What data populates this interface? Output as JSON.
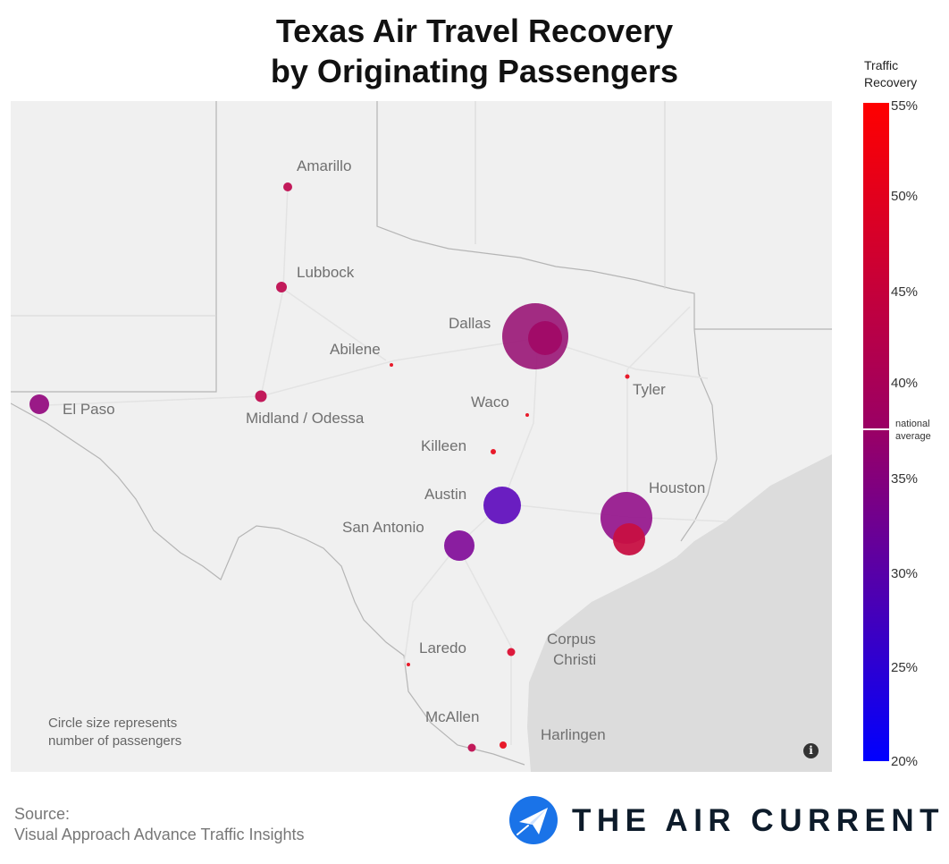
{
  "title": {
    "line1": "Texas Air Travel Recovery",
    "line2": "by Originating Passengers"
  },
  "legend": {
    "title_line1": "Traffic",
    "title_line2": "Recovery",
    "ticks": [
      "55%",
      "50%",
      "45%",
      "40%",
      "35%",
      "30%",
      "25%",
      "20%"
    ],
    "national_average_line1": "national",
    "national_average_line2": "average",
    "color_low": "#0000ff",
    "color_high": "#ff0000"
  },
  "note": {
    "line1": "Circle size represents",
    "line2": "number of passengers"
  },
  "info_icon": "info-icon",
  "source": {
    "line1": "Source:",
    "line2": "Visual Approach Advance Traffic Insights"
  },
  "brand": {
    "name": "THE AIR CURRENT",
    "logo_icon": "paper-plane-icon",
    "logo_color": "#1a73e8"
  },
  "cities": [
    {
      "name": "Amarillo"
    },
    {
      "name": "Lubbock"
    },
    {
      "name": "Dallas"
    },
    {
      "name": "Abilene"
    },
    {
      "name": "Tyler"
    },
    {
      "name": "El Paso"
    },
    {
      "name": "Midland / Odessa"
    },
    {
      "name": "Waco"
    },
    {
      "name": "Killeen"
    },
    {
      "name": "Austin"
    },
    {
      "name": "Houston"
    },
    {
      "name": "San Antonio"
    },
    {
      "name": "Laredo"
    },
    {
      "name": "Corpus",
      "name2": "Christi"
    },
    {
      "name": "McAllen"
    },
    {
      "name": "Harlingen"
    }
  ]
}
